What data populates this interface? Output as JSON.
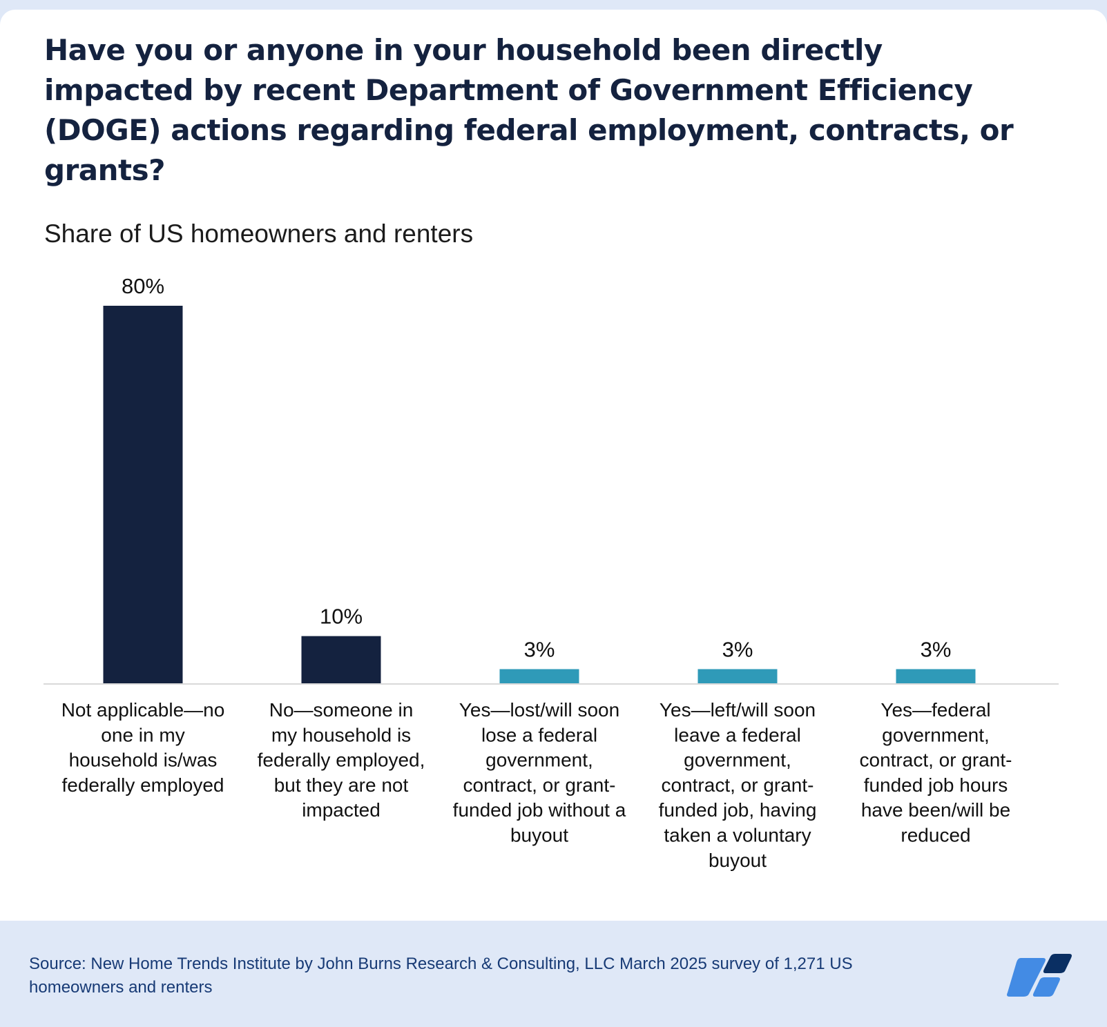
{
  "header": {
    "title": "Have you or anyone in your household been directly impacted by recent Department of Government Efficiency (DOGE) actions regarding federal employment, contracts, or grants?",
    "subtitle": "Share of US homeowners and renters"
  },
  "footer": {
    "source": "Source: New Home Trends Institute by John Burns Research & Consulting, LLC March 2025 survey of 1,271 US homeowners and renters",
    "logo": "john-burns-logo-icon"
  },
  "colors": {
    "dark_bar": "#14223f",
    "teal_bar": "#2f9ab8",
    "axis": "#d9d9d9",
    "logo_light": "#438be4",
    "logo_dark": "#0a2f63"
  },
  "chart_data": {
    "type": "bar",
    "title": "Have you or anyone in your household been directly impacted by recent Department of Government Efficiency (DOGE) actions regarding federal employment, contracts, or grants?",
    "subtitle": "Share of US homeowners and renters",
    "xlabel": "",
    "ylabel": "",
    "ylim": [
      0,
      80
    ],
    "grid": false,
    "unit": "%",
    "categories": [
      [
        "Not applicable—no",
        "one in my",
        "household is/was",
        "federally employed"
      ],
      [
        "No—someone in",
        "my household is",
        "federally employed,",
        "but they are not",
        "impacted"
      ],
      [
        "Yes—lost/will soon",
        "lose a federal",
        "government,",
        "contract, or grant-",
        "funded job without a",
        "buyout"
      ],
      [
        "Yes—left/will soon",
        "leave a federal",
        "government,",
        "contract, or grant-",
        "funded job, having",
        "taken a voluntary",
        "buyout"
      ],
      [
        "Yes—federal",
        "government,",
        "contract, or grant-",
        "funded job hours",
        "have been/will be",
        "reduced"
      ]
    ],
    "values": [
      80,
      10,
      3,
      3,
      3
    ],
    "data_labels": [
      "80%",
      "10%",
      "3%",
      "3%",
      "3%"
    ],
    "bar_colors": [
      "#14223f",
      "#14223f",
      "#2f9ab8",
      "#2f9ab8",
      "#2f9ab8"
    ]
  }
}
